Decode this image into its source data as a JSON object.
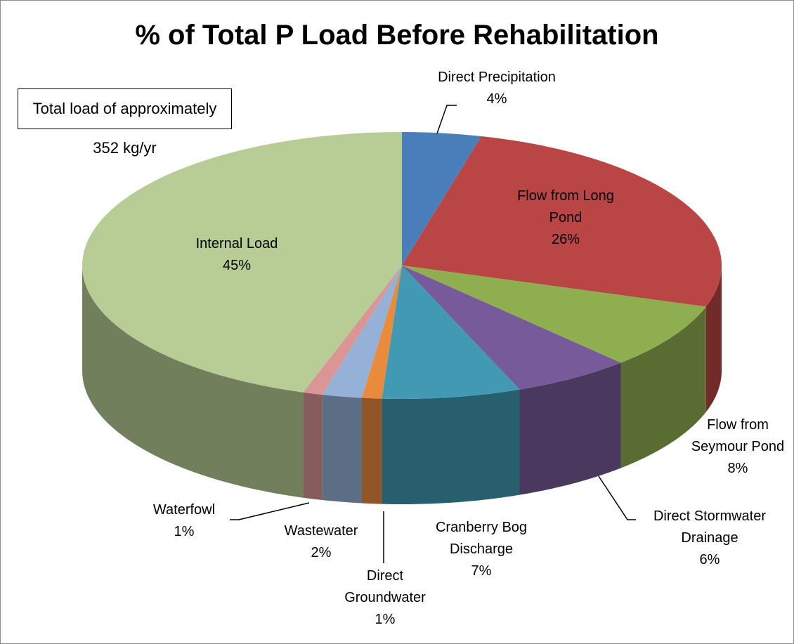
{
  "chart_data": {
    "type": "pie3d",
    "title": "% of Total P Load Before Rehabilitation",
    "annotation": "Total load of approximately 352 kg/yr",
    "categories": [
      "Direct Precipitation",
      "Flow from Long Pond",
      "Flow from Seymour Pond",
      "Direct Stormwater Drainage",
      "Cranberry Bog Discharge",
      "Direct Groundwater",
      "Wastewater",
      "Waterfowl",
      "Internal Load"
    ],
    "values": [
      4,
      26,
      8,
      6,
      7,
      1,
      2,
      1,
      45
    ],
    "value_labels": [
      "4%",
      "26%",
      "8%",
      "6%",
      "7%",
      "1%",
      "2%",
      "1%",
      "45%"
    ],
    "colors": [
      "#4a7ebb",
      "#b94644",
      "#8fae4f",
      "#775a9a",
      "#4199b3",
      "#e98b3c",
      "#95b1d8",
      "#d99694",
      "#b8cd95"
    ]
  }
}
